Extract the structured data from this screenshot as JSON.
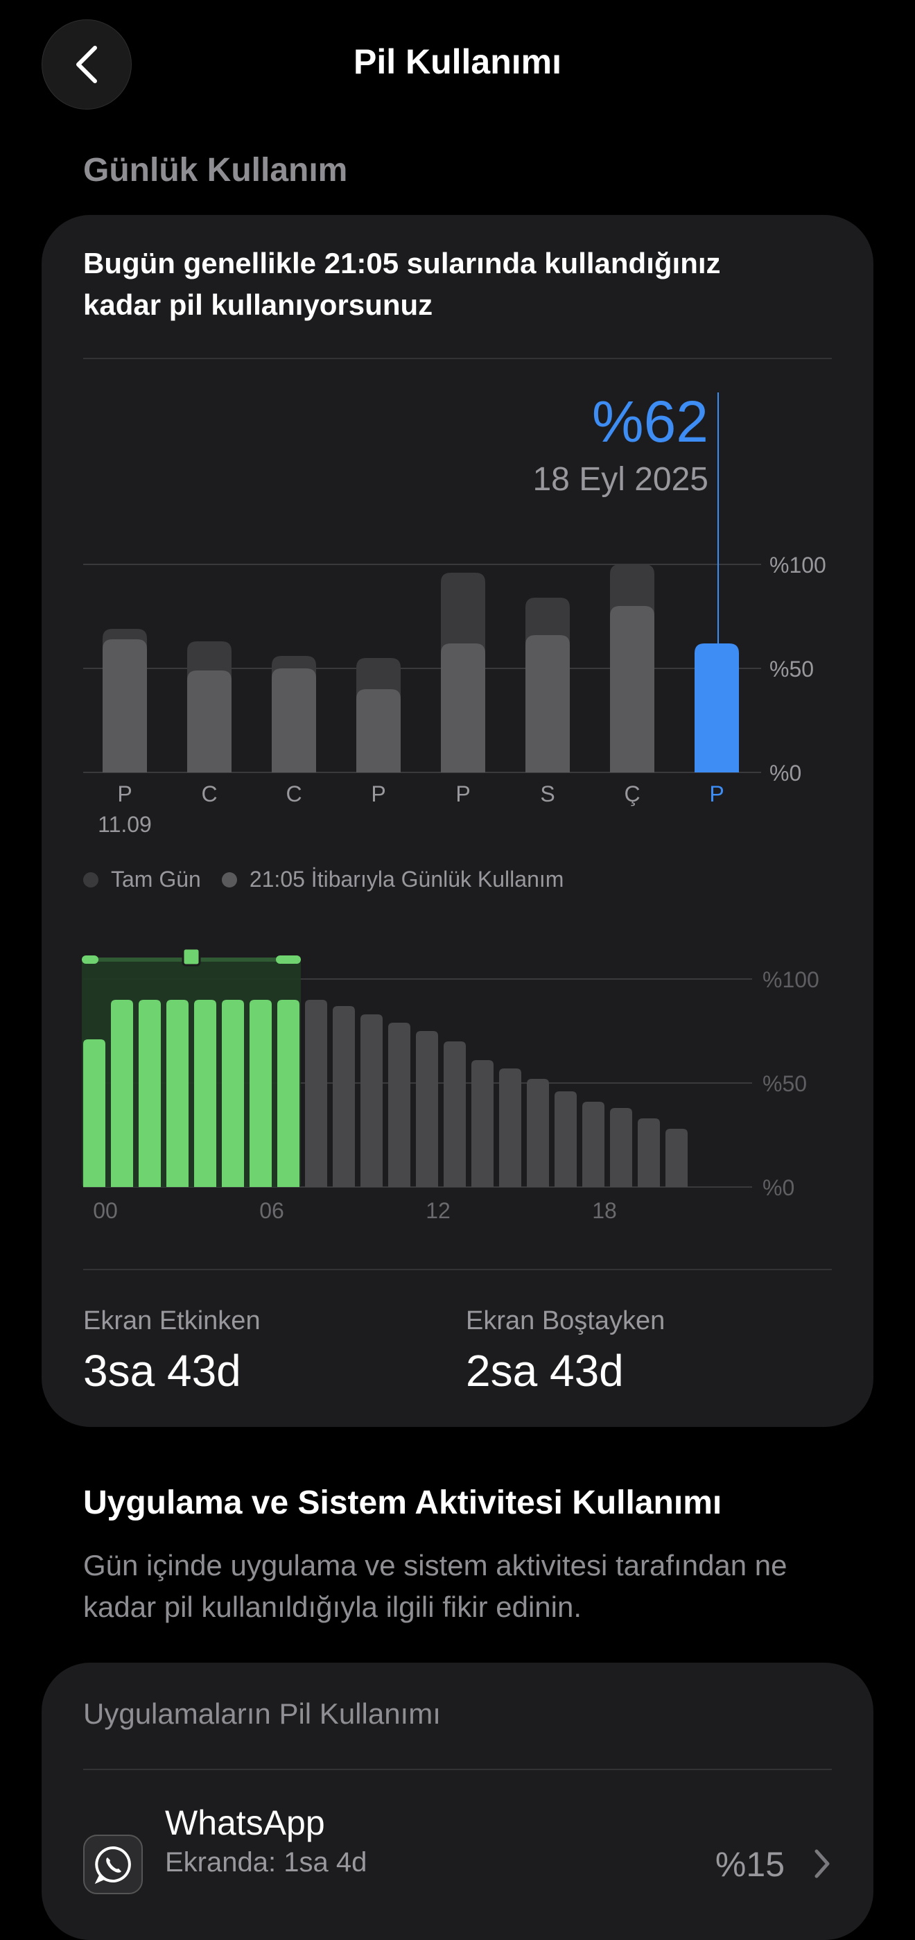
{
  "nav": {
    "title": "Pil Kullanımı",
    "back_icon": "chevron-left-icon"
  },
  "daily": {
    "heading": "Günlük Kullanım",
    "headline": "Bugün genellikle 21:05 sularında kullandığınız kadar pil kullanıyorsunuz",
    "selected_value": "%62",
    "selected_date": "18 Eyl 2025",
    "legend": {
      "full_day": "Tam Gün",
      "partial": "21:05 İtibarıyla Günlük Kullanım"
    },
    "screen_on_label": "Ekran Etkinken",
    "screen_on_value": "3sa 43d",
    "screen_idle_label": "Ekran Boştayken",
    "screen_idle_value": "2sa 43d"
  },
  "colors": {
    "accent": "#3d8df5",
    "green": "#6fd46f",
    "bar_gray": "#3a3a3c",
    "bar_gray_light": "#5a5a5c",
    "card_bg": "#1c1c1e"
  },
  "chart_data": [
    {
      "type": "bar",
      "categories": [
        "P",
        "C",
        "C",
        "P",
        "P",
        "S",
        "Ç",
        "P"
      ],
      "first_date_label": "11.09",
      "y_ticks": [
        "%100",
        "%50",
        "%0"
      ],
      "ylim": [
        0,
        100
      ],
      "series": [
        {
          "name": "Tam Gün",
          "values": [
            69,
            63,
            56,
            55,
            96,
            84,
            100,
            null
          ]
        },
        {
          "name": "21:05 İtibarıyla Günlük Kullanım",
          "values": [
            64,
            49,
            50,
            40,
            62,
            66,
            80,
            62
          ]
        }
      ],
      "selected_index": 7,
      "grid": true
    },
    {
      "type": "bar",
      "x_ticks": [
        "00",
        "06",
        "12",
        "18"
      ],
      "y_ticks": [
        "%100",
        "%50",
        "%0"
      ],
      "ylim": [
        0,
        100
      ],
      "values": [
        71,
        90,
        90,
        90,
        90,
        90,
        90,
        90,
        90,
        87,
        83,
        79,
        75,
        70,
        61,
        57,
        52,
        46,
        41,
        38,
        33,
        28
      ],
      "highlight_range": [
        0,
        7
      ],
      "grid": true
    }
  ],
  "activity": {
    "title": "Uygulama ve Sistem Aktivitesi Kullanımı",
    "description": "Gün içinde uygulama ve sistem aktivitesi tarafından ne kadar pil kullanıldığıyla ilgili fikir edinin."
  },
  "apps": {
    "card_title": "Uygulamaların Pil Kullanımı",
    "items": [
      {
        "name": "WhatsApp",
        "detail": "Ekranda: 1sa 4d",
        "percent": "%15",
        "icon": "whatsapp-icon"
      }
    ]
  }
}
